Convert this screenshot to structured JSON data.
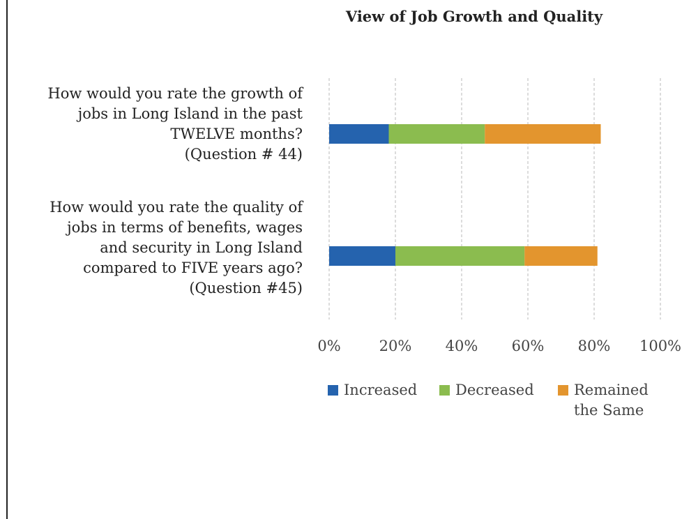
{
  "chart_data": {
    "type": "bar",
    "orientation": "horizontal",
    "stacked": true,
    "title": "View of Job Growth and Quality",
    "categories": [
      [
        "How would you rate the growth of",
        "jobs in Long Island in the past",
        "TWELVE months?",
        "(Question # 44)"
      ],
      [
        "How would you rate the quality of",
        "jobs in terms of benefits, wages",
        "and security in Long Island",
        "compared to FIVE years ago?",
        "(Question #45)"
      ]
    ],
    "series": [
      {
        "name": "Increased",
        "color": "#2563ae",
        "values": [
          18,
          20
        ]
      },
      {
        "name": "Decreased",
        "color": "#8bbc4f",
        "values": [
          29,
          39
        ]
      },
      {
        "name": "Remained the Same",
        "color": "#e3952e",
        "values": [
          35,
          22
        ]
      }
    ],
    "xlim": [
      0,
      100
    ],
    "x_ticks": [
      "0%",
      "20%",
      "40%",
      "60%",
      "80%",
      "100%"
    ],
    "grid": "vertical dashed",
    "legend": "bottom"
  },
  "legend": {
    "items": [
      "Increased",
      "Decreased"
    ],
    "remained_lines": [
      "Remained",
      "the Same"
    ]
  }
}
